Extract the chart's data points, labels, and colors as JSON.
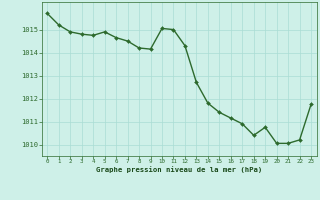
{
  "x": [
    0,
    1,
    2,
    3,
    4,
    5,
    6,
    7,
    8,
    9,
    10,
    11,
    12,
    13,
    14,
    15,
    16,
    17,
    18,
    19,
    20,
    21,
    22,
    23
  ],
  "y": [
    1015.7,
    1015.2,
    1014.9,
    1014.8,
    1014.75,
    1014.9,
    1014.65,
    1014.5,
    1014.2,
    1014.15,
    1015.05,
    1015.0,
    1014.3,
    1012.7,
    1011.8,
    1011.4,
    1011.15,
    1010.9,
    1010.4,
    1010.75,
    1010.05,
    1010.05,
    1010.2,
    1011.75
  ],
  "line_color": "#2d6a2d",
  "marker": "D",
  "marker_size": 2.0,
  "bg_color": "#cef0e8",
  "grid_color": "#aaddd4",
  "xlabel": "Graphe pression niveau de la mer (hPa)",
  "xlabel_color": "#1a4a1a",
  "tick_color": "#2d6a2d",
  "ylim": [
    1009.5,
    1016.2
  ],
  "yticks": [
    1010,
    1011,
    1012,
    1013,
    1014,
    1015
  ],
  "xticks": [
    0,
    1,
    2,
    3,
    4,
    5,
    6,
    7,
    8,
    9,
    10,
    11,
    12,
    13,
    14,
    15,
    16,
    17,
    18,
    19,
    20,
    21,
    22,
    23
  ],
  "lw": 1.0
}
